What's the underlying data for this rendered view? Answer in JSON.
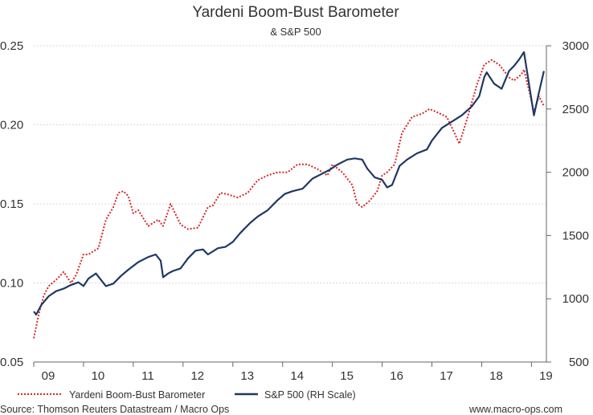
{
  "chart_data": {
    "type": "line",
    "title": "Yardeni Boom-Bust Barometer",
    "subtitle": "& S&P 500",
    "x_ticks": [
      "09",
      "10",
      "11",
      "12",
      "13",
      "14",
      "15",
      "16",
      "17",
      "18",
      "19"
    ],
    "xlim": [
      2009.0,
      2019.3
    ],
    "left_axis": {
      "ticks": [
        "0.05",
        "0.10",
        "0.15",
        "0.20",
        "0.25"
      ],
      "ylim": [
        0.05,
        0.25
      ]
    },
    "right_axis": {
      "ticks": [
        "500",
        "1000",
        "1500",
        "2000",
        "2500",
        "3000"
      ],
      "ylim": [
        500,
        3000
      ]
    },
    "grid": "horizontal dotted",
    "legend_position": "bottom",
    "series": [
      {
        "name": "Yardeni Boom-Bust Barometer",
        "axis": "left",
        "color": "#d62728",
        "style": "dotted",
        "x": [
          2009.0,
          2009.1,
          2009.2,
          2009.3,
          2009.45,
          2009.6,
          2009.75,
          2009.85,
          2010.0,
          2010.1,
          2010.3,
          2010.45,
          2010.6,
          2010.7,
          2010.8,
          2010.9,
          2011.0,
          2011.1,
          2011.3,
          2011.5,
          2011.6,
          2011.75,
          2011.95,
          2012.1,
          2012.3,
          2012.5,
          2012.6,
          2012.75,
          2012.9,
          2013.1,
          2013.3,
          2013.5,
          2013.7,
          2013.9,
          2014.1,
          2014.3,
          2014.5,
          2014.7,
          2014.9,
          2015.0,
          2015.2,
          2015.4,
          2015.5,
          2015.6,
          2015.75,
          2015.9,
          2016.0,
          2016.1,
          2016.25,
          2016.4,
          2016.6,
          2016.8,
          2016.95,
          2017.1,
          2017.3,
          2017.45,
          2017.55,
          2017.7,
          2017.9,
          2018.05,
          2018.2,
          2018.35,
          2018.55,
          2018.65,
          2018.8,
          2018.85,
          2018.95,
          2019.05,
          2019.15,
          2019.25
        ],
        "values": [
          0.065,
          0.08,
          0.092,
          0.098,
          0.102,
          0.107,
          0.1,
          0.105,
          0.118,
          0.118,
          0.122,
          0.14,
          0.148,
          0.157,
          0.158,
          0.155,
          0.144,
          0.146,
          0.136,
          0.14,
          0.136,
          0.15,
          0.137,
          0.134,
          0.135,
          0.148,
          0.149,
          0.157,
          0.156,
          0.154,
          0.157,
          0.165,
          0.168,
          0.17,
          0.17,
          0.175,
          0.175,
          0.172,
          0.168,
          0.175,
          0.17,
          0.162,
          0.15,
          0.148,
          0.152,
          0.158,
          0.168,
          0.17,
          0.175,
          0.195,
          0.205,
          0.207,
          0.21,
          0.208,
          0.205,
          0.195,
          0.188,
          0.203,
          0.225,
          0.238,
          0.241,
          0.238,
          0.23,
          0.228,
          0.232,
          0.235,
          0.222,
          0.208,
          0.218,
          0.212
        ]
      },
      {
        "name": "S&P 500 (RH Scale)",
        "axis": "right",
        "color": "#1f3864",
        "style": "solid",
        "x": [
          2009.0,
          2009.05,
          2009.15,
          2009.3,
          2009.45,
          2009.6,
          2009.75,
          2009.9,
          2010.0,
          2010.1,
          2010.25,
          2010.35,
          2010.45,
          2010.6,
          2010.75,
          2010.9,
          2011.0,
          2011.1,
          2011.3,
          2011.45,
          2011.55,
          2011.6,
          2011.7,
          2011.8,
          2011.95,
          2012.1,
          2012.25,
          2012.4,
          2012.5,
          2012.7,
          2012.85,
          2013.0,
          2013.15,
          2013.35,
          2013.5,
          2013.7,
          2013.9,
          2014.05,
          2014.2,
          2014.4,
          2014.6,
          2014.8,
          2014.95,
          2015.1,
          2015.3,
          2015.45,
          2015.6,
          2015.7,
          2015.85,
          2016.0,
          2016.1,
          2016.2,
          2016.35,
          2016.5,
          2016.7,
          2016.9,
          2017.0,
          2017.2,
          2017.4,
          2017.6,
          2017.8,
          2017.95,
          2018.05,
          2018.1,
          2018.25,
          2018.4,
          2018.55,
          2018.65,
          2018.75,
          2018.85,
          2018.95,
          2019.05,
          2019.15,
          2019.25
        ],
        "values": [
          900,
          875,
          950,
          1020,
          1060,
          1080,
          1110,
          1130,
          1100,
          1160,
          1200,
          1150,
          1100,
          1120,
          1180,
          1230,
          1260,
          1290,
          1330,
          1350,
          1300,
          1170,
          1200,
          1220,
          1240,
          1320,
          1380,
          1390,
          1350,
          1400,
          1410,
          1450,
          1520,
          1600,
          1650,
          1700,
          1780,
          1830,
          1850,
          1870,
          1950,
          1990,
          2020,
          2060,
          2100,
          2110,
          2100,
          2030,
          1960,
          1940,
          1880,
          1900,
          2050,
          2100,
          2150,
          2180,
          2250,
          2350,
          2400,
          2450,
          2520,
          2600,
          2750,
          2790,
          2700,
          2660,
          2800,
          2840,
          2890,
          2950,
          2700,
          2450,
          2630,
          2800
        ]
      }
    ],
    "legend": [
      {
        "label": "Yardeni Boom-Bust Barometer",
        "style": "dotted",
        "color": "#d62728"
      },
      {
        "label": "S&P 500 (RH Scale)",
        "style": "solid",
        "color": "#1f3864"
      }
    ]
  },
  "footer": {
    "source": "Source: Thomson Reuters Datastream / Macro Ops",
    "website": "www.macro-ops.com"
  }
}
